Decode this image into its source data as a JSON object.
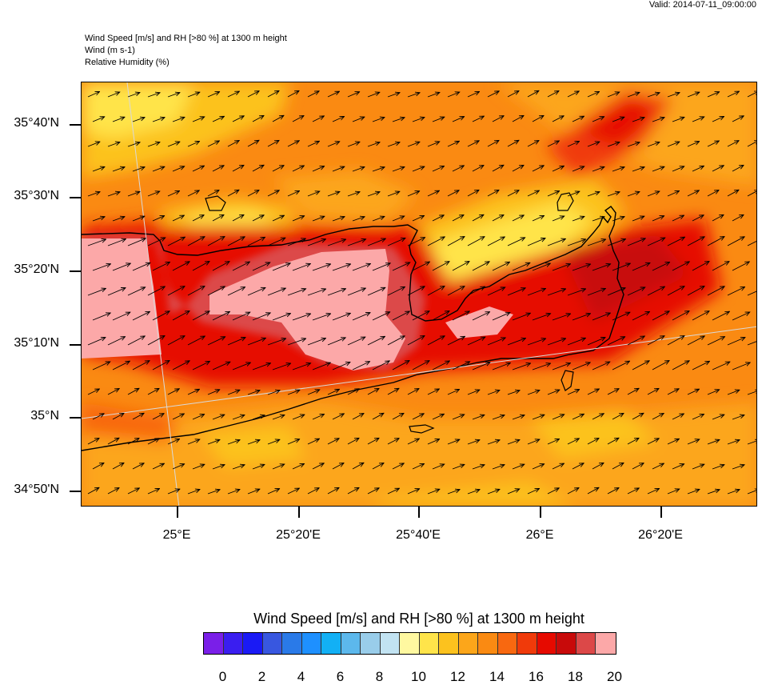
{
  "valid_time": "Valid: 2014-07-11_09:00:00",
  "header": {
    "line1": "Wind Speed [m/s] and RH [>80 %] at 1300 m height",
    "line2": "Wind   (m s-1)",
    "line3": "Relative Humidity   (%)"
  },
  "map": {
    "lat_labels": [
      "35°40'N",
      "35°30'N",
      "35°20'N",
      "35°10'N",
      "35°N",
      "34°50'N"
    ],
    "lon_labels": [
      "25°E",
      "25°20'E",
      "25°40'E",
      "26°E",
      "26°20'E"
    ],
    "lat_range": [
      34.8,
      35.77
    ],
    "lon_range": [
      24.8,
      26.58
    ],
    "region": "Crete"
  },
  "colorbar": {
    "title": "Wind Speed [m/s] and RH [>80 %] at 1300 m height",
    "colors": [
      "#7a1fe8",
      "#3a1ef0",
      "#1a1af5",
      "#3857e0",
      "#2a7ae8",
      "#1e90ff",
      "#12b0f5",
      "#5cb8ec",
      "#99cdea",
      "#c2e3f2",
      "#fff8a0",
      "#ffe44a",
      "#fcc21e",
      "#fca61a",
      "#fa8a12",
      "#f86810",
      "#f03a0a",
      "#e60a00",
      "#c80a0a",
      "#dc4848",
      "#fca8a8"
    ],
    "tick_labels": [
      "0",
      "2",
      "4",
      "6",
      "8",
      "10",
      "12",
      "14",
      "16",
      "18",
      "20"
    ]
  }
}
